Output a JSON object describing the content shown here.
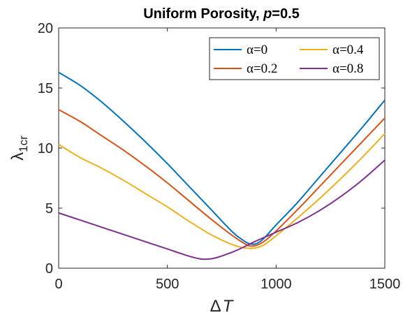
{
  "chart_data": {
    "type": "line",
    "title_text": "Uniform Porosity, ",
    "title_var": "p",
    "title_value": "=0.5",
    "xlabel_symbol": "Δ",
    "xlabel_var": "T",
    "ylabel_symbol": "λ",
    "ylabel_sub": "1cr",
    "xlim": [
      0,
      1500
    ],
    "ylim": [
      0,
      20
    ],
    "xticks": [
      "0",
      "500",
      "1000",
      "1500"
    ],
    "yticks": [
      "0",
      "5",
      "10",
      "15",
      "20"
    ],
    "grid": false,
    "legend_position": "top-right",
    "series": [
      {
        "name": "α=0",
        "color": "#0072BD",
        "x": [
          0,
          100,
          200,
          300,
          400,
          500,
          600,
          700,
          800,
          850,
          875,
          900,
          925,
          950,
          1000,
          1100,
          1200,
          1300,
          1400,
          1500
        ],
        "y": [
          16.3,
          15.2,
          13.8,
          12.2,
          10.5,
          8.7,
          6.8,
          4.9,
          3.0,
          2.3,
          2.05,
          2.0,
          2.2,
          2.6,
          3.6,
          5.5,
          7.6,
          9.7,
          11.8,
          14.0
        ]
      },
      {
        "name": "α=0.2",
        "color": "#D95319",
        "x": [
          0,
          100,
          200,
          300,
          400,
          500,
          600,
          700,
          800,
          850,
          880,
          910,
          950,
          1000,
          1100,
          1200,
          1300,
          1400,
          1500
        ],
        "y": [
          13.2,
          12.2,
          11.0,
          9.8,
          8.5,
          7.1,
          5.6,
          4.1,
          2.7,
          2.1,
          1.85,
          1.9,
          2.3,
          3.1,
          4.9,
          6.8,
          8.7,
          10.6,
          12.5
        ]
      },
      {
        "name": "α=0.4",
        "color": "#EDB120",
        "x": [
          0,
          100,
          200,
          300,
          400,
          500,
          600,
          700,
          800,
          850,
          880,
          910,
          950,
          1000,
          1100,
          1200,
          1300,
          1400,
          1500
        ],
        "y": [
          10.3,
          9.2,
          8.3,
          7.3,
          6.2,
          5.1,
          3.9,
          2.8,
          1.95,
          1.7,
          1.65,
          1.7,
          2.0,
          2.7,
          4.2,
          5.8,
          7.5,
          9.3,
          11.2
        ]
      },
      {
        "name": "α=0.8",
        "color": "#7E2F8E",
        "x": [
          0,
          100,
          200,
          300,
          400,
          500,
          600,
          650,
          680,
          720,
          800,
          850,
          900,
          950,
          1000,
          1100,
          1200,
          1300,
          1400,
          1500
        ],
        "y": [
          4.6,
          4.0,
          3.4,
          2.8,
          2.2,
          1.6,
          1.0,
          0.78,
          0.75,
          0.85,
          1.35,
          1.75,
          2.2,
          2.6,
          3.0,
          3.8,
          4.8,
          6.0,
          7.4,
          9.0
        ]
      }
    ]
  }
}
